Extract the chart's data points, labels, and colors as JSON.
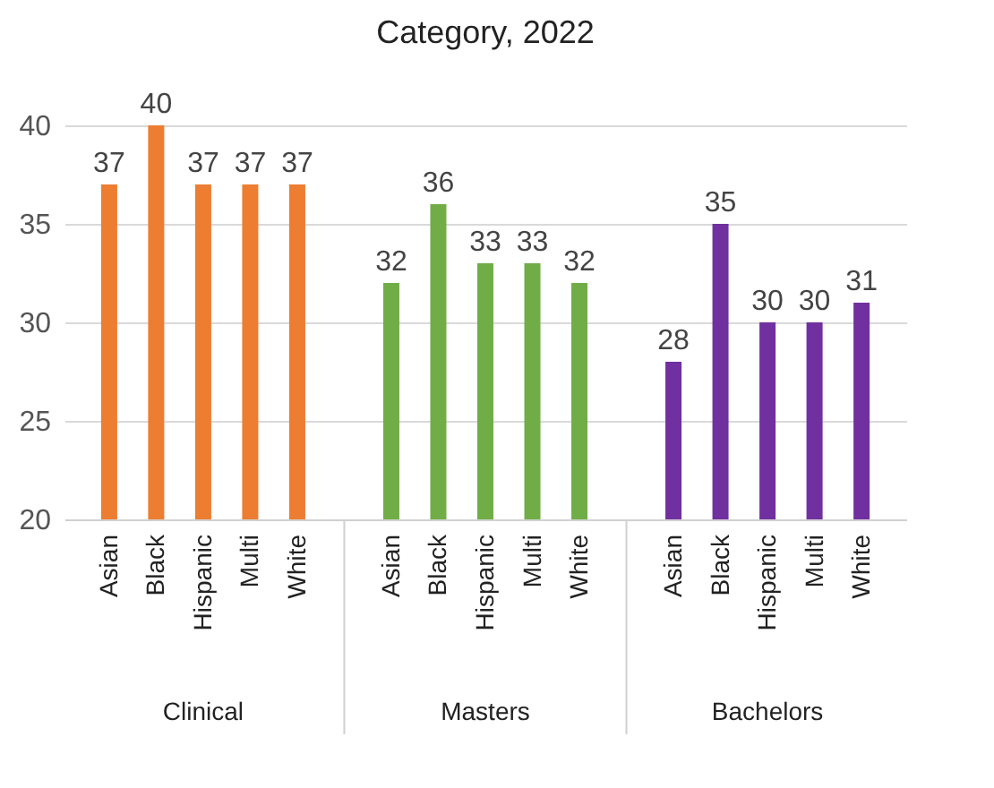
{
  "chart_data": {
    "type": "bar",
    "title": "Category, 2022",
    "categories": [
      "Asian",
      "Black",
      "Hispanic",
      "Multi",
      "White",
      "Asian",
      "Black",
      "Hispanic",
      "Multi",
      "White",
      "Asian",
      "Black",
      "Hispanic",
      "Multi",
      "White"
    ],
    "series": [
      {
        "name": "Clinical",
        "color": "#ed7d31",
        "values": [
          37,
          40,
          37,
          37,
          37,
          null,
          null,
          null,
          null,
          null,
          null,
          null,
          null,
          null,
          null
        ]
      },
      {
        "name": "Masters",
        "color": "#70ad47",
        "values": [
          null,
          null,
          null,
          null,
          null,
          32,
          36,
          33,
          33,
          32,
          null,
          null,
          null,
          null,
          null
        ]
      },
      {
        "name": "Bachelors",
        "color": "#7030a0",
        "values": [
          null,
          null,
          null,
          null,
          null,
          null,
          null,
          null,
          null,
          null,
          28,
          35,
          30,
          30,
          31
        ]
      }
    ],
    "ylim": [
      20,
      40
    ],
    "yticks": [
      20,
      25,
      30,
      35,
      40
    ],
    "grid": "y",
    "data_labels": true
  }
}
